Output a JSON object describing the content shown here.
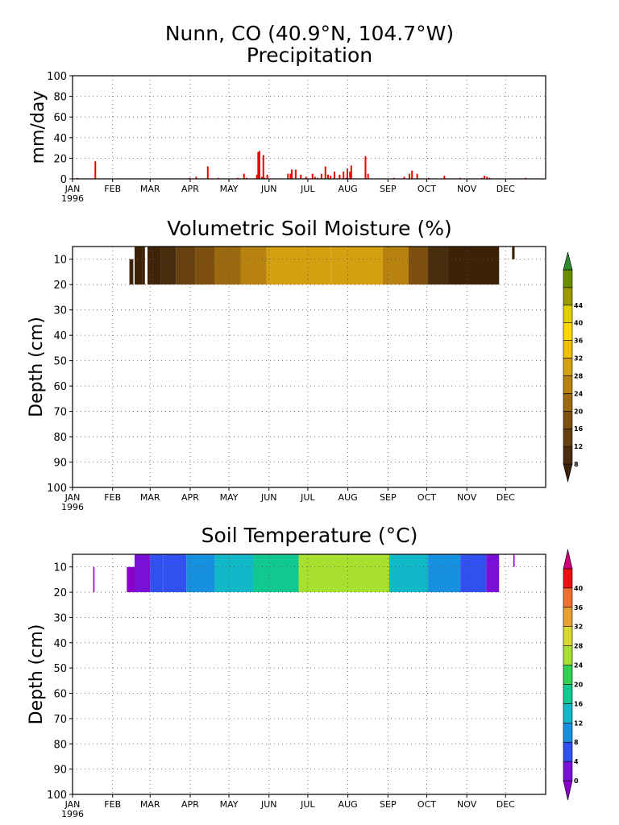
{
  "title": {
    "line1": "Nunn, CO   (40.9°N, 104.7°W)",
    "line2": "Precipitation"
  },
  "months": [
    "JAN",
    "FEB",
    "MAR",
    "APR",
    "MAY",
    "JUN",
    "JUL",
    "AUG",
    "SEP",
    "OCT",
    "NOV",
    "DEC"
  ],
  "year_label": "1996",
  "chart_data": [
    {
      "type": "bar",
      "title": "Precipitation",
      "ylabel": "mm/day",
      "ylim": [
        0,
        100
      ],
      "yticks": [
        0,
        20,
        40,
        60,
        80,
        100
      ],
      "xlim_days": [
        0,
        366
      ],
      "grid": true,
      "color": "#ee0000",
      "days": [
        3,
        17,
        146,
        148,
        162,
        165,
        166,
        168,
        169,
        172,
        176,
        180,
        185,
        187,
        189,
        192,
        195,
        197,
        199,
        202,
        206,
        209,
        211,
        212,
        214,
        215,
        226,
        228,
        248,
        256,
        260,
        262,
        266,
        299,
        316,
        318,
        320,
        350
      ],
      "values": [
        1,
        17,
        2,
        1,
        0,
        0,
        5,
        5,
        9,
        9,
        4,
        2,
        5,
        2,
        1,
        5,
        12,
        4,
        3,
        7,
        4,
        7,
        1,
        10,
        7,
        13,
        22,
        5,
        1,
        2,
        5,
        8,
        5,
        1,
        1,
        3,
        2,
        1
      ],
      "extra": [
        [
          90,
          1
        ],
        [
          95,
          2
        ],
        [
          104,
          12
        ],
        [
          112,
          1
        ],
        [
          134,
          1
        ],
        [
          142,
          4
        ],
        [
          150,
          4
        ],
        [
          144,
          27
        ],
        [
          143,
          26
        ],
        [
          147,
          23
        ],
        [
          132,
          5
        ],
        [
          127,
          1
        ],
        [
          275,
          1
        ],
        [
          287,
          3
        ],
        [
          322,
          1
        ]
      ]
    },
    {
      "type": "heatmap",
      "title": "Volumetric Soil Moisture (%)",
      "ylabel": "Depth (cm)",
      "ylim": [
        100,
        5
      ],
      "yticks": [
        10,
        20,
        30,
        40,
        50,
        60,
        70,
        80,
        90,
        100
      ],
      "colorbar_ticks": [
        8,
        12,
        16,
        20,
        24,
        28,
        32,
        36,
        40,
        44
      ],
      "colorbar_colors": [
        "#3d2208",
        "#4a2c0e",
        "#674010",
        "#7e5010",
        "#9a6910",
        "#b78210",
        "#d4a010",
        "#eec000",
        "#ffd700",
        "#e0d000",
        "#9a9a00",
        "#6b8e00",
        "#2e8b2e"
      ],
      "segments": [
        [
          48,
          54,
          5,
          20,
          "#3d2208"
        ],
        [
          54,
          56,
          5,
          20,
          "#3d2208"
        ],
        [
          58,
          62,
          5,
          20,
          "#3d2208"
        ],
        [
          44,
          47,
          10,
          20,
          "#3d2208"
        ],
        [
          62,
          68,
          5,
          20,
          "#3d2208"
        ],
        [
          68,
          80,
          5,
          20,
          "#4a2c0e"
        ],
        [
          80,
          95,
          5,
          20,
          "#674010"
        ],
        [
          95,
          110,
          5,
          20,
          "#7e5010"
        ],
        [
          110,
          130,
          5,
          20,
          "#9a6910"
        ],
        [
          130,
          150,
          5,
          20,
          "#b78210"
        ],
        [
          150,
          200,
          5,
          20,
          "#d4a010"
        ],
        [
          200,
          240,
          5,
          20,
          "#d4a010"
        ],
        [
          240,
          260,
          5,
          20,
          "#b78210"
        ],
        [
          260,
          275,
          5,
          20,
          "#7e5010"
        ],
        [
          275,
          290,
          5,
          20,
          "#4a2c0e"
        ],
        [
          290,
          330,
          5,
          20,
          "#3d2208"
        ],
        [
          340,
          342,
          5,
          10,
          "#3d2208"
        ]
      ]
    },
    {
      "type": "heatmap",
      "title": "Soil Temperature (°C)",
      "ylabel": "Depth (cm)",
      "ylim": [
        100,
        5
      ],
      "yticks": [
        10,
        20,
        30,
        40,
        50,
        60,
        70,
        80,
        90,
        100
      ],
      "colorbar_ticks": [
        0,
        4,
        8,
        12,
        16,
        20,
        24,
        28,
        32,
        36,
        40
      ],
      "colorbar_colors": [
        "#8b00c8",
        "#7a10d8",
        "#3050f0",
        "#1890e0",
        "#10b8c8",
        "#10c890",
        "#30d050",
        "#a8e030",
        "#d8d830",
        "#e8a030",
        "#f07030",
        "#ee1010",
        "#d0007a"
      ],
      "segments": [
        [
          16,
          17,
          10,
          20,
          "#8b00c8"
        ],
        [
          42,
          48,
          10,
          20,
          "#8b00c8"
        ],
        [
          48,
          60,
          5,
          20,
          "#7a10d8"
        ],
        [
          60,
          70,
          5,
          20,
          "#3050f0"
        ],
        [
          70,
          88,
          5,
          20,
          "#3050f0"
        ],
        [
          88,
          110,
          5,
          20,
          "#1890e0"
        ],
        [
          110,
          140,
          5,
          20,
          "#10b8c8"
        ],
        [
          140,
          175,
          5,
          20,
          "#10c890"
        ],
        [
          175,
          245,
          5,
          20,
          "#a8e030"
        ],
        [
          245,
          275,
          5,
          20,
          "#10b8c8"
        ],
        [
          275,
          300,
          5,
          20,
          "#1890e0"
        ],
        [
          300,
          320,
          5,
          20,
          "#3050f0"
        ],
        [
          320,
          330,
          5,
          20,
          "#7a10d8"
        ],
        [
          341,
          342,
          5,
          10,
          "#8b00c8"
        ]
      ]
    }
  ]
}
